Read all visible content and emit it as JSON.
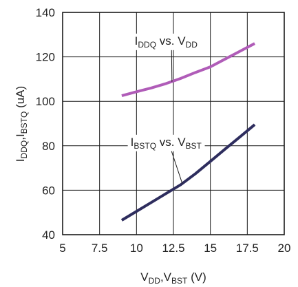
{
  "chart_data": {
    "type": "line",
    "xlabel": {
      "parts": [
        {
          "t": "V"
        },
        {
          "t": "DD",
          "sub": true
        },
        {
          "t": ",V"
        },
        {
          "t": "BST",
          "sub": true
        },
        {
          "t": " (V)"
        }
      ]
    },
    "ylabel": {
      "parts": [
        {
          "t": "I"
        },
        {
          "t": "DDQ",
          "sub": true
        },
        {
          "t": ",I"
        },
        {
          "t": "BSTQ",
          "sub": true
        },
        {
          "t": " (uA)"
        }
      ]
    },
    "xlim": [
      5,
      20
    ],
    "ylim": [
      40,
      140
    ],
    "x_ticks": [
      "5",
      "7.5",
      "10",
      "12.5",
      "15",
      "17.5",
      "20"
    ],
    "y_ticks": [
      "40",
      "60",
      "80",
      "100",
      "120",
      "140"
    ],
    "grid": true,
    "series": [
      {
        "name": {
          "parts": [
            {
              "t": "I"
            },
            {
              "t": "DDQ",
              "sub": true
            },
            {
              "t": " vs. V"
            },
            {
              "t": "DD",
              "sub": true
            }
          ]
        },
        "color": "#b05cb8",
        "x": [
          9,
          10,
          11,
          12,
          13,
          14,
          15,
          16,
          17,
          18
        ],
        "y": [
          102.5,
          104.3,
          106,
          108,
          110.3,
          113,
          115.5,
          119,
          122.5,
          126
        ]
      },
      {
        "name": {
          "parts": [
            {
              "t": "I"
            },
            {
              "t": "BSTQ",
              "sub": true
            },
            {
              "t": " vs. V"
            },
            {
              "t": "BST",
              "sub": true
            }
          ]
        },
        "color": "#2e2d5e",
        "x": [
          9,
          10,
          11,
          12,
          13,
          14,
          15,
          16,
          17,
          18
        ],
        "y": [
          46.5,
          50.5,
          54.5,
          58.5,
          62.5,
          67.5,
          73,
          78.5,
          84,
          89.5
        ]
      }
    ]
  }
}
